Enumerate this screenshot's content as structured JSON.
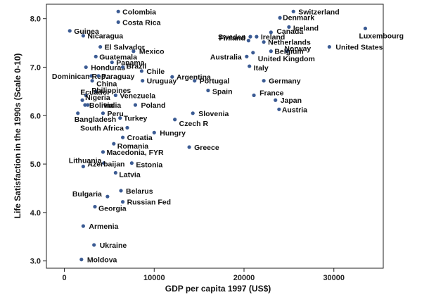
{
  "chart_data": {
    "type": "scatter",
    "xlabel": "GDP per capita 1997 (US$)",
    "ylabel": "Life Satisfaction in the 1990s (Scale 0-10)",
    "xlim": [
      -2000,
      35500
    ],
    "ylim": [
      2.85,
      8.3
    ],
    "x_ticks": [
      0,
      10000,
      20000,
      30000
    ],
    "x_tick_labels": [
      "0",
      "10000",
      "20000",
      "30000"
    ],
    "y_ticks": [
      3.0,
      4.0,
      5.0,
      6.0,
      7.0,
      8.0
    ],
    "y_tick_labels": [
      "3.0",
      "4.0",
      "5.0",
      "6.0",
      "7.0",
      "8.0"
    ],
    "grid": false,
    "marker_color": "#3b5b93",
    "points": [
      {
        "label": "Colombia",
        "x": 6000,
        "y": 8.15,
        "dx": 6,
        "dy": 4
      },
      {
        "label": "Costa Rica",
        "x": 6000,
        "y": 7.93,
        "dx": 6,
        "dy": 4
      },
      {
        "label": "Guinea",
        "x": 600,
        "y": 7.75,
        "dx": 6,
        "dy": 4
      },
      {
        "label": "Nicaragua",
        "x": 2100,
        "y": 7.65,
        "dx": 6,
        "dy": 4
      },
      {
        "label": "El Salvador",
        "x": 4000,
        "y": 7.42,
        "dx": 6,
        "dy": 4
      },
      {
        "label": "Mexico",
        "x": 7700,
        "y": 7.33,
        "dx": 8,
        "dy": 4
      },
      {
        "label": "Guatemala",
        "x": 3500,
        "y": 7.22,
        "dx": 5,
        "dy": 4
      },
      {
        "label": "Panama",
        "x": 5300,
        "y": 7.1,
        "dx": 6,
        "dy": 4
      },
      {
        "label": "Honduras",
        "x": 2400,
        "y": 7.0,
        "dx": 7,
        "dy": 4
      },
      {
        "label": "Brazil",
        "x": 6500,
        "y": 7.0,
        "dx": 5,
        "dy": 2
      },
      {
        "label": "Dominican Rep.",
        "x": 3000,
        "y": 6.82,
        "dx": -56,
        "dy": 4
      },
      {
        "label": "Paraguay",
        "x": 3800,
        "y": 6.82,
        "dx": 4,
        "dy": 4
      },
      {
        "label": "Chile",
        "x": 8600,
        "y": 6.92,
        "dx": 7,
        "dy": 4
      },
      {
        "label": "Argentina",
        "x": 12000,
        "y": 6.8,
        "dx": 6,
        "dy": 4
      },
      {
        "label": "Uruguay",
        "x": 8700,
        "y": 6.72,
        "dx": 6,
        "dy": 4
      },
      {
        "label": "China",
        "x": 3100,
        "y": 6.72,
        "dx": 6,
        "dy": 8
      },
      {
        "label": "Philippines",
        "x": 3500,
        "y": 6.5,
        "dx": -6,
        "dy": 2
      },
      {
        "label": "Portugal",
        "x": 14500,
        "y": 6.72,
        "dx": 7,
        "dy": 4
      },
      {
        "label": "Venezuela",
        "x": 5700,
        "y": 6.42,
        "dx": 6,
        "dy": 4
      },
      {
        "label": "Ecuador",
        "x": 2400,
        "y": 6.42,
        "dx": -8,
        "dy": -1
      },
      {
        "label": "Nigeria",
        "x": 2000,
        "y": 6.32,
        "dx": 4,
        "dy": 0
      },
      {
        "label": "Bolivia",
        "x": 2300,
        "y": 6.22,
        "dx": 6,
        "dy": 4
      },
      {
        "label": "India",
        "x": 2600,
        "y": 6.22,
        "dx": 23,
        "dy": 4
      },
      {
        "label": "Bangladesh",
        "x": 1500,
        "y": 6.05,
        "dx": -5,
        "dy": 12
      },
      {
        "label": "Peru",
        "x": 4300,
        "y": 6.05,
        "dx": 6,
        "dy": 4
      },
      {
        "label": "Poland",
        "x": 7900,
        "y": 6.22,
        "dx": 8,
        "dy": 4
      },
      {
        "label": "Turkey",
        "x": 6200,
        "y": 5.95,
        "dx": 5,
        "dy": 4
      },
      {
        "label": "Slovenia",
        "x": 14300,
        "y": 6.05,
        "dx": 8,
        "dy": 4
      },
      {
        "label": "Czech R",
        "x": 12300,
        "y": 5.92,
        "dx": 6,
        "dy": 9
      },
      {
        "label": "Spain",
        "x": 16000,
        "y": 6.52,
        "dx": 6,
        "dy": 5
      },
      {
        "label": "South Africa",
        "x": 7000,
        "y": 5.75,
        "dx": -67,
        "dy": 4
      },
      {
        "label": "Hungry",
        "x": 10000,
        "y": 5.65,
        "dx": 8,
        "dy": 4
      },
      {
        "label": "Croatia",
        "x": 6500,
        "y": 5.55,
        "dx": 6,
        "dy": 4
      },
      {
        "label": "Romania",
        "x": 5500,
        "y": 5.42,
        "dx": 5,
        "dy": 7
      },
      {
        "label": "Greece",
        "x": 13900,
        "y": 5.35,
        "dx": 7,
        "dy": 4
      },
      {
        "label": "Macedonia, FYR",
        "x": 4300,
        "y": 5.25,
        "dx": 5,
        "dy": 4
      },
      {
        "label": "Lithuania",
        "x": 4400,
        "y": 5.02,
        "dx": -50,
        "dy": 0
      },
      {
        "label": "Estonia",
        "x": 7500,
        "y": 5.02,
        "dx": 6,
        "dy": 6
      },
      {
        "label": "Azerbaijan",
        "x": 2100,
        "y": 4.95,
        "dx": 6,
        "dy": 0
      },
      {
        "label": "Latvia",
        "x": 5700,
        "y": 4.82,
        "dx": 5,
        "dy": 6
      },
      {
        "label": "Bulgaria",
        "x": 4800,
        "y": 4.33,
        "dx": -50,
        "dy": 0
      },
      {
        "label": "Belarus",
        "x": 6300,
        "y": 4.45,
        "dx": 7,
        "dy": 4
      },
      {
        "label": "Russian Fed",
        "x": 6500,
        "y": 4.22,
        "dx": 6,
        "dy": 4
      },
      {
        "label": "Georgia",
        "x": 3400,
        "y": 4.12,
        "dx": 5,
        "dy": 6
      },
      {
        "label": "Armenia",
        "x": 2100,
        "y": 3.72,
        "dx": 8,
        "dy": 4
      },
      {
        "label": "Ukraine",
        "x": 3300,
        "y": 3.33,
        "dx": 8,
        "dy": 4
      },
      {
        "label": "Moldova",
        "x": 1900,
        "y": 3.03,
        "dx": 8,
        "dy": 4
      },
      {
        "label": "Switzerland",
        "x": 25500,
        "y": 8.15,
        "dx": 7,
        "dy": 4
      },
      {
        "label": "Denmark",
        "x": 24000,
        "y": 8.02,
        "dx": 4,
        "dy": 3
      },
      {
        "label": "Iceland",
        "x": 25000,
        "y": 7.83,
        "dx": 6,
        "dy": 5
      },
      {
        "label": "Canada",
        "x": 23000,
        "y": 7.72,
        "dx": 8,
        "dy": 2
      },
      {
        "label": "Luxembourg",
        "x": 33500,
        "y": 7.8,
        "dx": -9,
        "dy": 14
      },
      {
        "label": "Sweden",
        "x": 20700,
        "y": 7.63,
        "dx": -46,
        "dy": 4
      },
      {
        "label": "Ireland",
        "x": 21400,
        "y": 7.63,
        "dx": 6,
        "dy": 4
      },
      {
        "label": "Finland",
        "x": 20500,
        "y": 7.55,
        "dx": -42,
        "dy": 0
      },
      {
        "label": "Netherlands",
        "x": 22200,
        "y": 7.52,
        "dx": 6,
        "dy": 4
      },
      {
        "label": "United States",
        "x": 29500,
        "y": 7.42,
        "dx": 9,
        "dy": 4
      },
      {
        "label": "Norway",
        "x": 24800,
        "y": 7.33,
        "dx": -4,
        "dy": 0
      },
      {
        "label": "Belgium",
        "x": 23000,
        "y": 7.33,
        "dx": 5,
        "dy": 4
      },
      {
        "label": "Australia",
        "x": 20300,
        "y": 7.22,
        "dx": -52,
        "dy": 4
      },
      {
        "label": "United Kingdom",
        "x": 21000,
        "y": 7.3,
        "dx": 7,
        "dy": 12
      },
      {
        "label": "Italy",
        "x": 20600,
        "y": 7.02,
        "dx": 6,
        "dy": 6
      },
      {
        "label": "Germany",
        "x": 22200,
        "y": 6.72,
        "dx": 7,
        "dy": 4
      },
      {
        "label": "France",
        "x": 21100,
        "y": 6.42,
        "dx": 8,
        "dy": 0
      },
      {
        "label": "Japan",
        "x": 23500,
        "y": 6.32,
        "dx": 7,
        "dy": 4
      },
      {
        "label": "Austria",
        "x": 23900,
        "y": 6.13,
        "dx": 4,
        "dy": 4
      }
    ]
  }
}
